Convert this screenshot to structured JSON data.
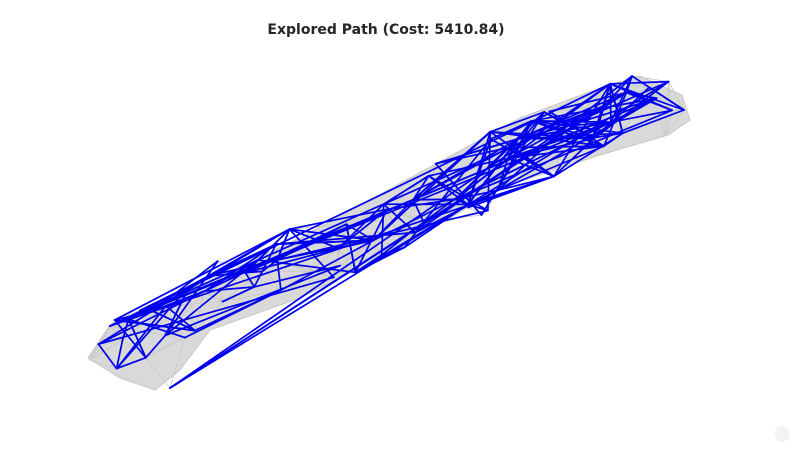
{
  "plot": {
    "title": "Explored Path (Cost: 5410.84)",
    "cost": 5410.84,
    "path_color": "#0000ee",
    "context_edge_color": "#c8c8c8",
    "hull_color": "#d9d9d9"
  }
}
